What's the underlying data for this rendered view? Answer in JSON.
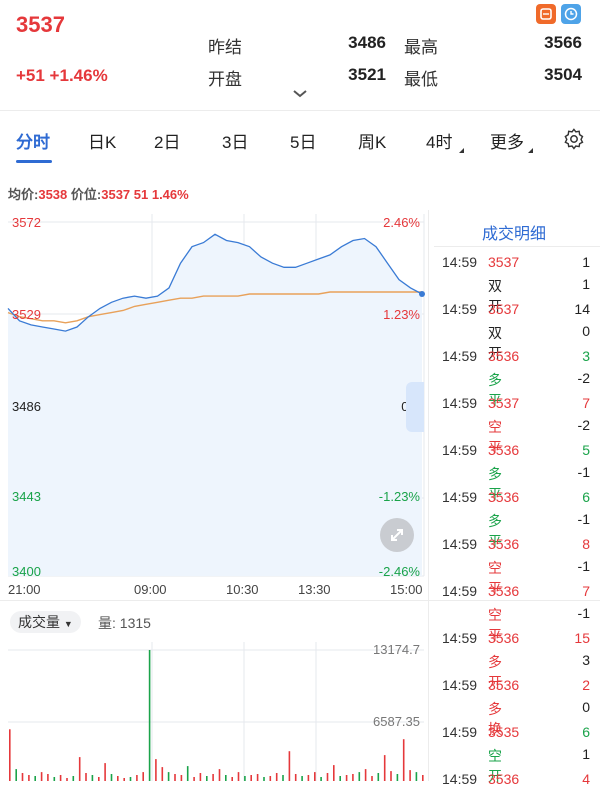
{
  "header": {
    "price": "3537",
    "change": "+51 +1.46%",
    "quotes": [
      {
        "label": "昨结",
        "value": "3486"
      },
      {
        "label": "最高",
        "value": "3566"
      },
      {
        "label": "开盘",
        "value": "3521"
      },
      {
        "label": "最低",
        "value": "3504"
      }
    ],
    "icons": [
      "calculator-icon",
      "clock-icon"
    ],
    "colors": {
      "up": "#e5383b",
      "down": "#1aa34a",
      "accent": "#2f6bd3",
      "avg_line": "#e8a15a",
      "price_line": "#3a7bd5"
    }
  },
  "tabs": [
    "分时",
    "日K",
    "2日",
    "3日",
    "5日",
    "周K",
    "4时",
    "更多"
  ],
  "info": {
    "avg_label": "均价:",
    "avg_value": "3538",
    "price_label": "价位:",
    "price_value": "3537 51 1.46%"
  },
  "intraday": {
    "y_left": [
      "3572",
      "3529",
      "3486",
      "3443",
      "3400"
    ],
    "y_right": [
      "2.46%",
      "1.23%",
      "0%",
      "-1.23%",
      "-2.46%"
    ],
    "x_labels": [
      "21:00",
      "09:00",
      "10:30",
      "13:30",
      "15:00"
    ],
    "chart_data": {
      "type": "line",
      "ylim": [
        3400,
        3572
      ],
      "x_labels": [
        "21:00",
        "09:00",
        "10:30",
        "13:30",
        "15:00"
      ],
      "series": [
        {
          "values": [
            3530,
            3524,
            3522,
            3521,
            3520,
            3519,
            3521,
            3526,
            3530,
            3533,
            3535,
            3536,
            3535,
            3536,
            3540,
            3552,
            3560,
            3562,
            3566,
            3563,
            3562,
            3560,
            3555,
            3552,
            3550,
            3550,
            3552,
            3554,
            3556,
            3560,
            3563,
            3564,
            3560,
            3552,
            3544,
            3540,
            3537
          ]
        },
        {
          "values": [
            3528,
            3526,
            3525,
            3524,
            3524,
            3523,
            3524,
            3526,
            3527,
            3528,
            3529,
            3531,
            3532,
            3533,
            3534,
            3535,
            3535,
            3536,
            3536,
            3536,
            3536,
            3537,
            3537,
            3537,
            3537,
            3537,
            3537,
            3537,
            3538,
            3538,
            3538,
            3538,
            3538,
            3538,
            3538,
            3538,
            3538
          ]
        }
      ]
    }
  },
  "trades": {
    "title": "成交明细",
    "rows": [
      {
        "time": "14:59",
        "price": "3537",
        "qty": "1",
        "type": "双开",
        "oi": "1",
        "pc": "red",
        "tc": "dark"
      },
      {
        "time": "14:59",
        "price": "3537",
        "qty": "14",
        "type": "双开",
        "oi": "0",
        "pc": "red",
        "tc": "dark"
      },
      {
        "time": "14:59",
        "price": "3536",
        "qty": "3",
        "type": "多平",
        "oi": "-2",
        "pc": "red",
        "tc": "green",
        "qc": "green"
      },
      {
        "time": "14:59",
        "price": "3537",
        "qty": "7",
        "type": "空平",
        "oi": "-2",
        "pc": "red",
        "tc": "red",
        "qc": "red"
      },
      {
        "time": "14:59",
        "price": "3536",
        "qty": "5",
        "type": "多平",
        "oi": "-1",
        "pc": "red",
        "tc": "green",
        "qc": "green"
      },
      {
        "time": "14:59",
        "price": "3536",
        "qty": "6",
        "type": "多平",
        "oi": "-1",
        "pc": "red",
        "tc": "green",
        "qc": "green"
      },
      {
        "time": "14:59",
        "price": "3536",
        "qty": "8",
        "type": "空平",
        "oi": "-1",
        "pc": "red",
        "tc": "red",
        "qc": "red"
      },
      {
        "time": "14:59",
        "price": "3536",
        "qty": "7",
        "type": "空平",
        "oi": "-1",
        "pc": "red",
        "tc": "red",
        "qc": "red"
      },
      {
        "time": "14:59",
        "price": "3536",
        "qty": "15",
        "type": "多开",
        "oi": "3",
        "pc": "red",
        "tc": "red",
        "qc": "red"
      },
      {
        "time": "14:59",
        "price": "3536",
        "qty": "2",
        "type": "多换",
        "oi": "0",
        "pc": "red",
        "tc": "red",
        "qc": "red"
      },
      {
        "time": "14:59",
        "price": "3535",
        "qty": "6",
        "type": "空开",
        "oi": "1",
        "pc": "red",
        "tc": "green",
        "qc": "green"
      },
      {
        "time": "14:59",
        "price": "3536",
        "qty": "4",
        "type": "",
        "oi": "",
        "pc": "red",
        "tc": "red",
        "qc": "red"
      }
    ]
  },
  "volume": {
    "dropdown_label": "成交量",
    "amount_label": "量: 1315",
    "axis": [
      "13174.7",
      "6587.35"
    ],
    "ymax": 13174.7,
    "bars": [
      5200,
      1200,
      800,
      600,
      500,
      900,
      700,
      400,
      600,
      300,
      500,
      2400,
      800,
      600,
      400,
      1800,
      700,
      500,
      300,
      400,
      600,
      900,
      13174,
      2200,
      1400,
      900,
      700,
      600,
      1500,
      400,
      800,
      500,
      700,
      1200,
      600,
      400,
      900,
      500,
      600,
      700,
      400,
      500,
      800,
      600,
      3000,
      700,
      500,
      600,
      900,
      400,
      800,
      1600,
      500,
      600,
      700,
      900,
      1200,
      500,
      800,
      2600,
      1000,
      700,
      4200,
      1100,
      900,
      600
    ],
    "bar_colors": [
      "red",
      "green"
    ]
  }
}
